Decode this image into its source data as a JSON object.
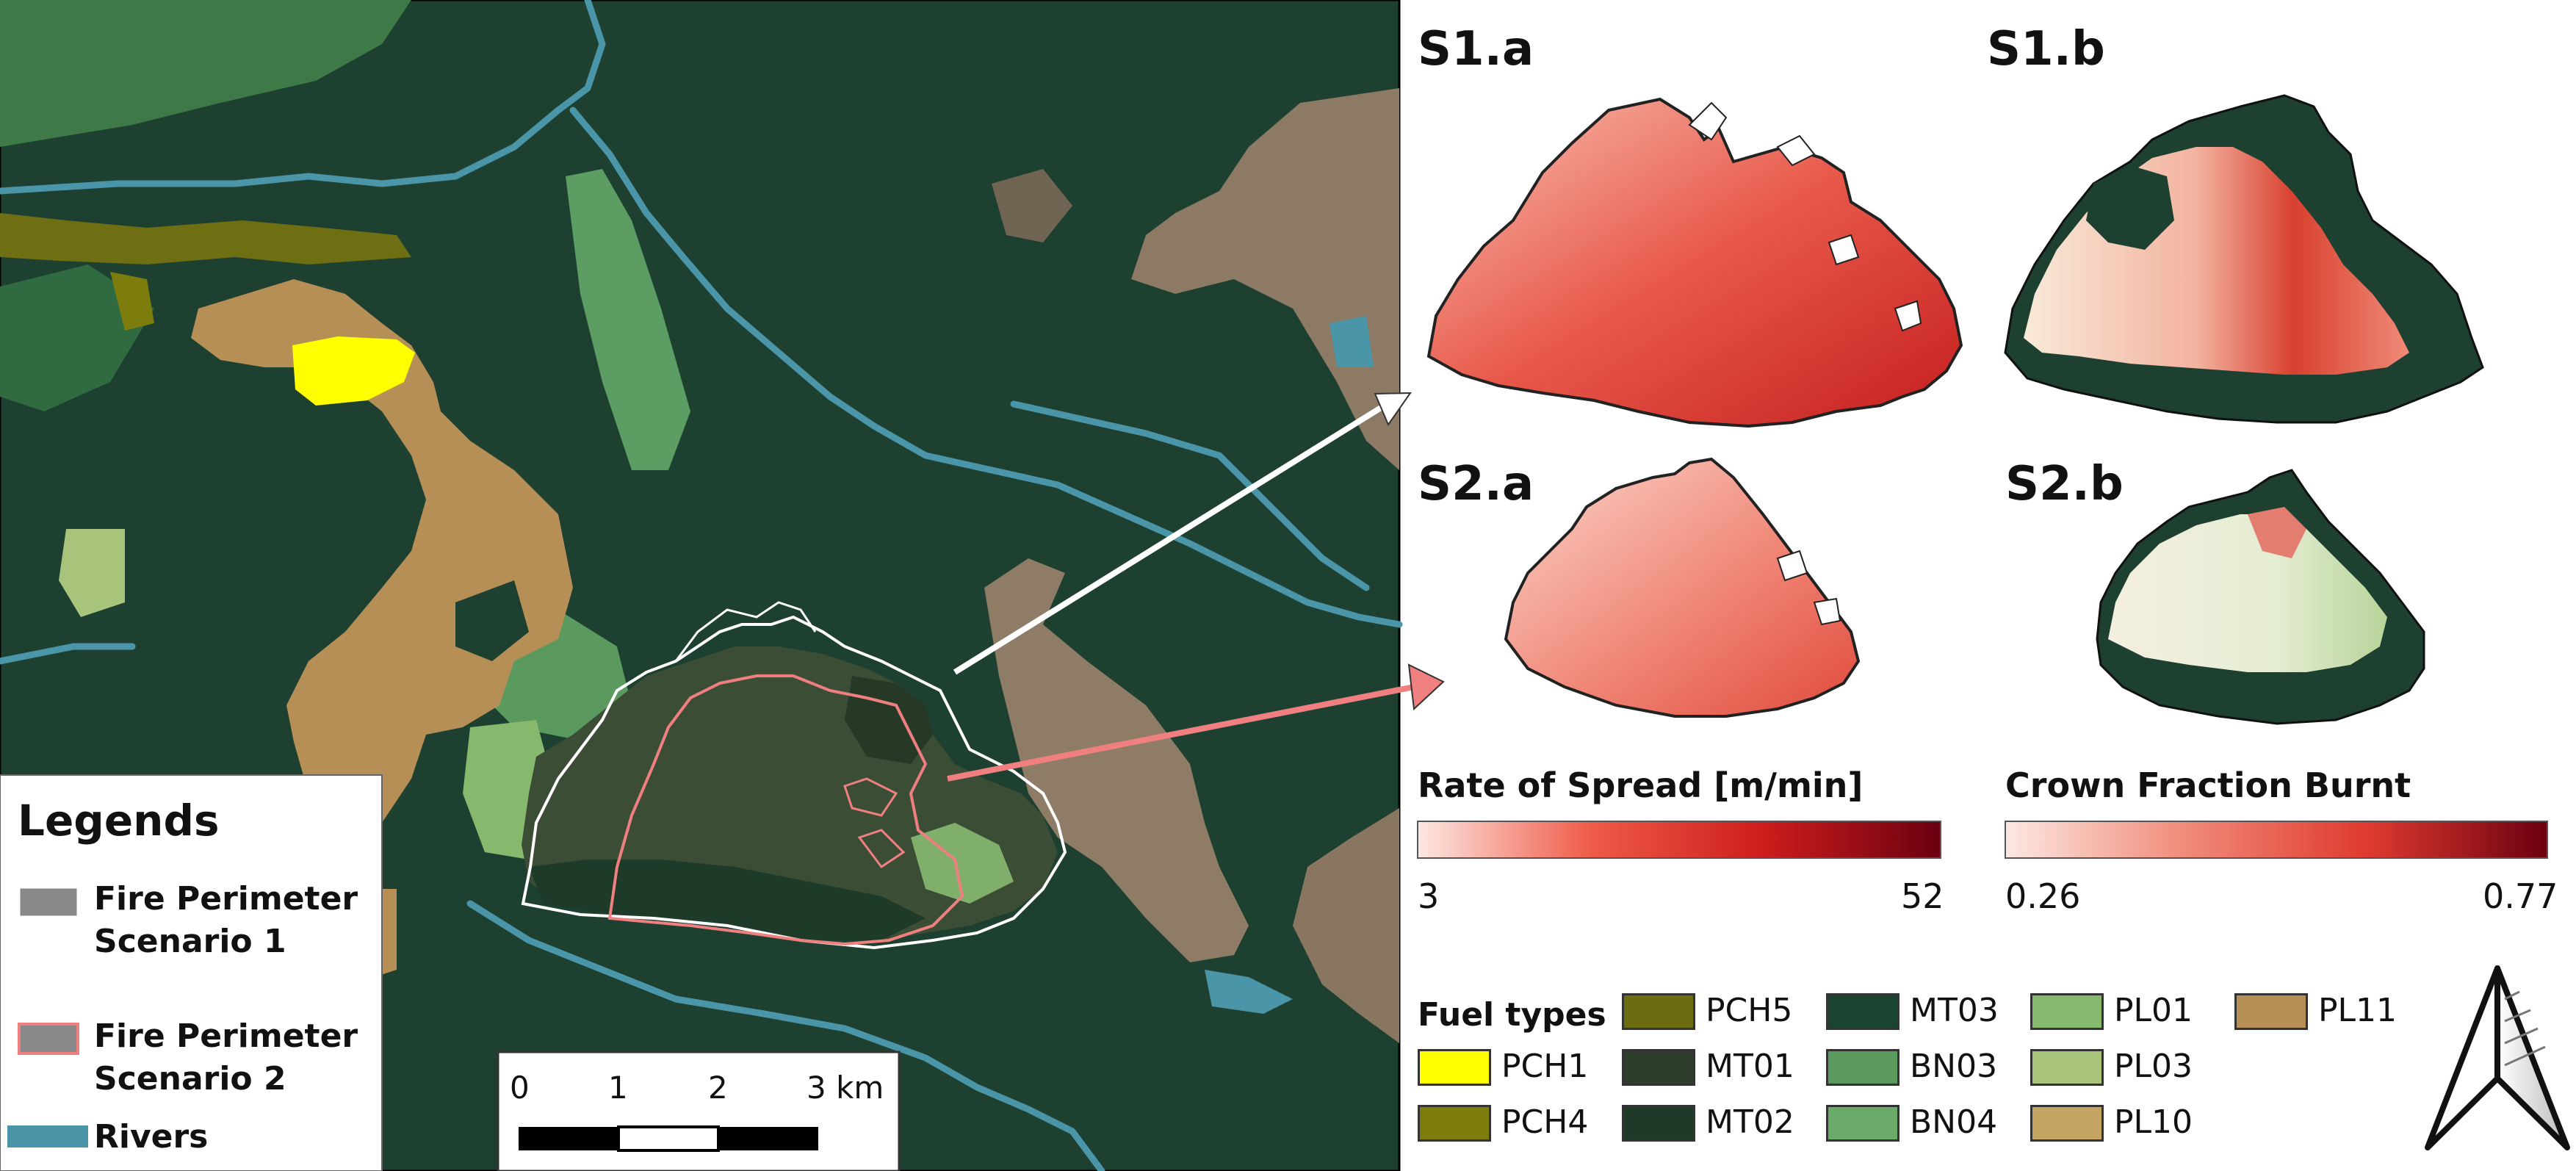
{
  "legend": {
    "title": "Legends",
    "items": [
      {
        "label_lines": [
          "Fire Perimeter",
          "Scenario 1"
        ],
        "swatch_color": "#888888",
        "outline_color": "#ffffff"
      },
      {
        "label_lines": [
          "Fire Perimeter",
          "Scenario 2"
        ],
        "swatch_color": "#888888",
        "outline_color": "#f08080"
      },
      {
        "label_lines": [
          "Rivers"
        ],
        "swatch_color": "#4a95a8"
      }
    ]
  },
  "scale_bar": {
    "ticks": [
      "0",
      "1",
      "2",
      "3 km"
    ]
  },
  "panels": [
    {
      "label": "S1.a"
    },
    {
      "label": "S1.b"
    },
    {
      "label": "S2.a"
    },
    {
      "label": "S2.b"
    }
  ],
  "colorbars": [
    {
      "title": "Rate of Spread [m/min]",
      "min": "3",
      "max": "52",
      "colors": [
        "#fde8e2",
        "#ef5a48",
        "#cc1c1c",
        "#6b0010"
      ]
    },
    {
      "title": "Crown Fraction Burnt",
      "min": "0.26",
      "max": "0.77",
      "colors": [
        "#fde8e2",
        "#f08a78",
        "#e03a30",
        "#6b0010"
      ]
    }
  ],
  "fuel_types": {
    "title": "Fuel types",
    "items": [
      {
        "code": "PCH1",
        "color": "#ffff00"
      },
      {
        "code": "PCH4",
        "color": "#7d7d0d"
      },
      {
        "code": "PCH5",
        "color": "#6b6b10"
      },
      {
        "code": "MT01",
        "color": "#2e3d2c"
      },
      {
        "code": "MT02",
        "color": "#1e3a28"
      },
      {
        "code": "MT03",
        "color": "#1a4430"
      },
      {
        "code": "BN03",
        "color": "#5a9a5e"
      },
      {
        "code": "BN04",
        "color": "#6aab6a"
      },
      {
        "code": "PL01",
        "color": "#86b86e"
      },
      {
        "code": "PL03",
        "color": "#a8c47a"
      },
      {
        "code": "PL10",
        "color": "#c4a463"
      },
      {
        "code": "PL11",
        "color": "#b58f55"
      }
    ]
  },
  "colors": {
    "forest": "#1d4030",
    "forest_light": "#2e5a3c",
    "terrain": "#8c7a64",
    "river": "#4a95a8",
    "pl11": "#b58f55",
    "pch1": "#ffff00",
    "perimeter_s1": "#ffffff",
    "perimeter_s2": "#f08080"
  }
}
